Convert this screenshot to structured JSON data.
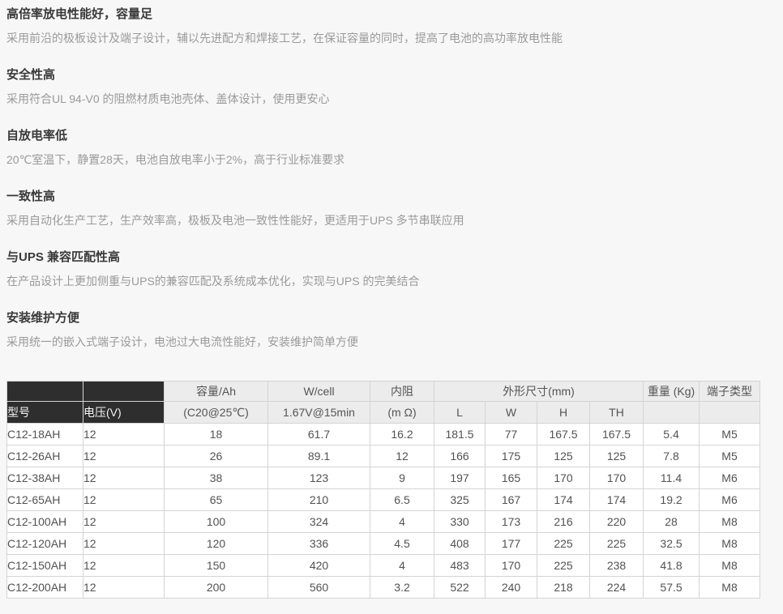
{
  "page": {
    "background_color": "#f7f7f7",
    "header_dark_bg": "#2e2e2e",
    "header_light_bg": "#ececec",
    "table_border_color": "#d4d4d4",
    "heading_color": "#3a3a3a",
    "body_text_color": "#9a9a9a"
  },
  "sections": [
    {
      "heading": "高倍率放电性能好，容量足",
      "body": "采用前沿的极板设计及端子设计，辅以先进配方和焊接工艺，在保证容量的同时，提高了电池的高功率放电性能"
    },
    {
      "heading": "安全性高",
      "body": "采用符合UL 94-V0 的阻燃材质电池壳体、盖体设计，使用更安心"
    },
    {
      "heading": "自放电率低",
      "body": "20℃室温下，静置28天，电池自放电率小于2%，高于行业标准要求"
    },
    {
      "heading": "一致性高",
      "body": "采用自动化生产工艺，生产效率高，极板及电池一致性性能好，更适用于UPS 多节串联应用"
    },
    {
      "heading": "与UPS 兼容匹配性高",
      "body": "在产品设计上更加侧重与UPS的兼容匹配及系统成本优化，实现与UPS 的完美结合"
    },
    {
      "heading": "安装维护方便",
      "body": "采用统一的嵌入式端子设计，电池过大电流性能好，安装维护简单方便"
    }
  ],
  "table": {
    "header": {
      "model_label": "型号",
      "voltage_label": "电压(V)",
      "group": {
        "capacity": "容量/Ah",
        "wcell": "W/cell",
        "resistance": "内阻",
        "dimensions": "外形尺寸(mm)",
        "weight": "重量 (Kg)",
        "terminal": "端子类型"
      },
      "sub": {
        "capacity": "(C20@25℃)",
        "wcell": "1.67V@15min",
        "resistance": "(m Ω)",
        "dims": [
          "L",
          "W",
          "H",
          "TH"
        ]
      }
    },
    "rows": [
      [
        "C12-18AH",
        "12",
        "18",
        "61.7",
        "16.2",
        "181.5",
        "77",
        "167.5",
        "167.5",
        "5.4",
        "M5"
      ],
      [
        "C12-26AH",
        "12",
        "26",
        "89.1",
        "12",
        "166",
        "175",
        "125",
        "125",
        "7.8",
        "M5"
      ],
      [
        "C12-38AH",
        "12",
        "38",
        "123",
        "9",
        "197",
        "165",
        "170",
        "170",
        "11.4",
        "M6"
      ],
      [
        "C12-65AH",
        "12",
        "65",
        "210",
        "6.5",
        "325",
        "167",
        "174",
        "174",
        "19.2",
        "M6"
      ],
      [
        "C12-100AH",
        "12",
        "100",
        "324",
        "4",
        "330",
        "173",
        "216",
        "220",
        "28",
        "M8"
      ],
      [
        "C12-120AH",
        "12",
        "120",
        "336",
        "4.5",
        "408",
        "177",
        "225",
        "225",
        "32.5",
        "M8"
      ],
      [
        "C12-150AH",
        "12",
        "150",
        "420",
        "4",
        "483",
        "170",
        "225",
        "238",
        "41.8",
        "M8"
      ],
      [
        "C12-200AH",
        "12",
        "200",
        "560",
        "3.2",
        "522",
        "240",
        "218",
        "224",
        "57.5",
        "M8"
      ]
    ]
  }
}
